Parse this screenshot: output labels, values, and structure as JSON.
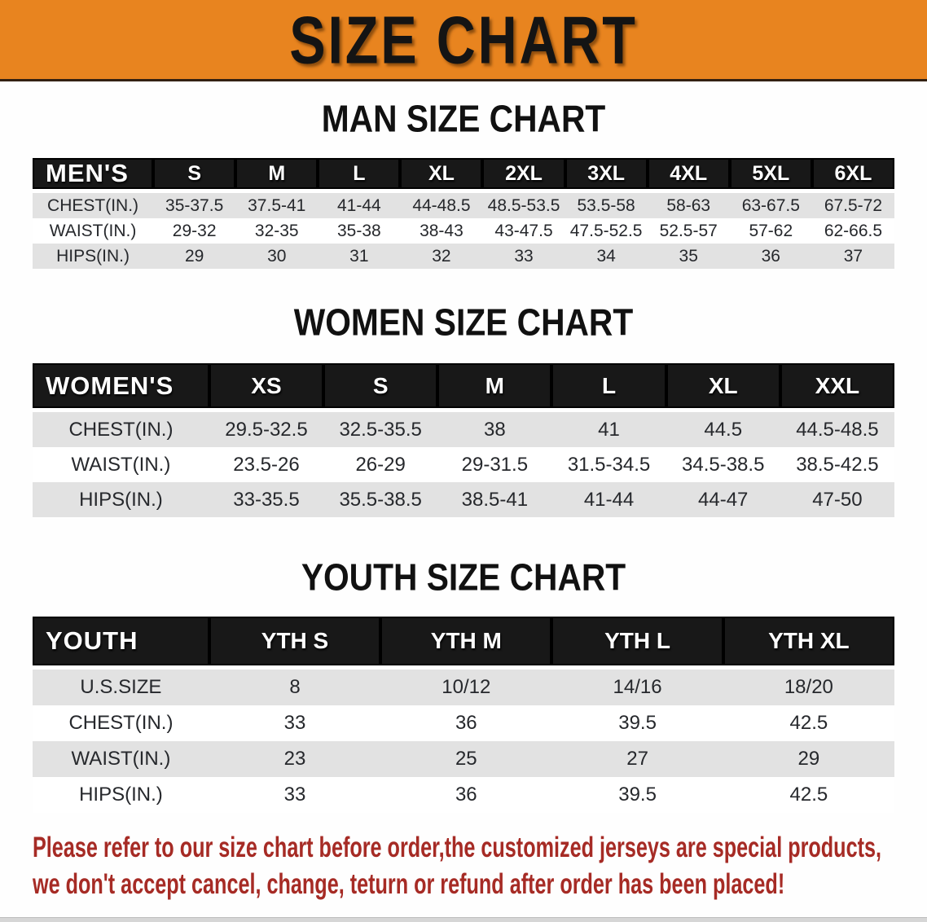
{
  "banner": {
    "title": "SIZE CHART"
  },
  "sections": [
    {
      "title": "MAN SIZE CHART"
    },
    {
      "title": "WOMEN SIZE CHART"
    },
    {
      "title": "YOUTH SIZE CHART"
    }
  ],
  "tables": [
    {
      "label": "MEN'S",
      "columns": [
        "S",
        "M",
        "L",
        "XL",
        "2XL",
        "3XL",
        "4XL",
        "5XL",
        "6XL"
      ],
      "rows": [
        {
          "label": "CHEST(IN.)",
          "values": [
            "35-37.5",
            "37.5-41",
            "41-44",
            "44-48.5",
            "48.5-53.5",
            "53.5-58",
            "58-63",
            "63-67.5",
            "67.5-72"
          ]
        },
        {
          "label": "WAIST(IN.)",
          "values": [
            "29-32",
            "32-35",
            "35-38",
            "38-43",
            "43-47.5",
            "47.5-52.5",
            "52.5-57",
            "57-62",
            "62-66.5"
          ]
        },
        {
          "label": "HIPS(IN.)",
          "values": [
            "29",
            "30",
            "31",
            "32",
            "33",
            "34",
            "35",
            "36",
            "37"
          ]
        }
      ]
    },
    {
      "label": "WOMEN'S",
      "columns": [
        "XS",
        "S",
        "M",
        "L",
        "XL",
        "XXL"
      ],
      "rows": [
        {
          "label": "CHEST(IN.)",
          "values": [
            "29.5-32.5",
            "32.5-35.5",
            "38",
            "41",
            "44.5",
            "44.5-48.5"
          ]
        },
        {
          "label": "WAIST(IN.)",
          "values": [
            "23.5-26",
            "26-29",
            "29-31.5",
            "31.5-34.5",
            "34.5-38.5",
            "38.5-42.5"
          ]
        },
        {
          "label": "HIPS(IN.)",
          "values": [
            "33-35.5",
            "35.5-38.5",
            "38.5-41",
            "41-44",
            "44-47",
            "47-50"
          ]
        }
      ]
    },
    {
      "label": "YOUTH",
      "columns": [
        "YTH S",
        "YTH M",
        "YTH L",
        "YTH XL"
      ],
      "rows": [
        {
          "label": "U.S.SIZE",
          "values": [
            "8",
            "10/12",
            "14/16",
            "18/20"
          ]
        },
        {
          "label": "CHEST(IN.)",
          "values": [
            "33",
            "36",
            "39.5",
            "42.5"
          ]
        },
        {
          "label": "WAIST(IN.)",
          "values": [
            "23",
            "25",
            "27",
            "29"
          ]
        },
        {
          "label": "HIPS(IN.)",
          "values": [
            "33",
            "36",
            "39.5",
            "42.5"
          ]
        }
      ]
    }
  ],
  "notice": {
    "line1": "Please refer to our size chart before order,the customized jerseys are special products,",
    "line2": "we don't accept cancel, change, teturn or refund after order has been placed!"
  },
  "colors": {
    "banner_orange": "#E8841F",
    "table_header_black": "#181818",
    "row_stripe_gray": "#E2E2E2",
    "notice_red": "#A62B25",
    "title_black": "#111111"
  }
}
